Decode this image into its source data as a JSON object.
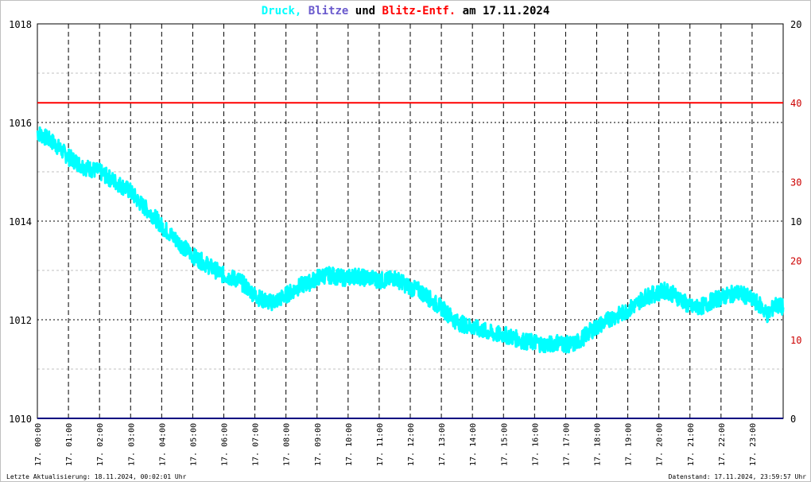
{
  "chart_data": {
    "type": "line",
    "title": {
      "part1": "Druck,",
      "part2": "Blitze",
      "part3": "und",
      "part4": "Blitz-Entf.",
      "part5": "am 17.11.2024"
    },
    "colors": {
      "pressure": "#00ffff",
      "lightning": "#6a5acd",
      "distance": "#ff0000",
      "baseline": "#000080",
      "grid": "#000000",
      "minor_grid": "#c0c0c0",
      "text": "#000000",
      "right_red": "#cc0000"
    },
    "left_axis": {
      "ylim": [
        1010,
        1018
      ],
      "ticks": [
        "1010",
        "1012",
        "1014",
        "1016",
        "1018"
      ]
    },
    "right_axis": {
      "ticks_black": [
        {
          "label": "20",
          "y": 1018
        },
        {
          "label": "10",
          "y": 1014
        },
        {
          "label": "0",
          "y": 1010
        }
      ],
      "ticks_red": [
        {
          "label": "40",
          "y": 1016.4
        },
        {
          "label": "30",
          "y": 1014.8
        },
        {
          "label": "20",
          "y": 1013.2
        },
        {
          "label": "10",
          "y": 1011.6
        }
      ]
    },
    "x_ticks": [
      "17. 00:00",
      "17. 01:00",
      "17. 02:00",
      "17. 03:00",
      "17. 04:00",
      "17. 05:00",
      "17. 06:00",
      "17. 07:00",
      "17. 08:00",
      "17. 09:00",
      "17. 10:00",
      "17. 11:00",
      "17. 12:00",
      "17. 13:00",
      "17. 14:00",
      "17. 15:00",
      "17. 16:00",
      "17. 17:00",
      "17. 18:00",
      "17. 19:00",
      "17. 20:00",
      "17. 21:00",
      "17. 22:00",
      "17. 23:00"
    ],
    "distance_line": {
      "y": 1016.4
    },
    "lightning_count": {
      "y": 1010
    },
    "pressure_series": {
      "name": "Druck",
      "x_hours": [
        0,
        0.25,
        0.5,
        0.75,
        1,
        1.25,
        1.5,
        1.75,
        2,
        2.25,
        2.5,
        2.75,
        3,
        3.25,
        3.5,
        3.75,
        4,
        4.25,
        4.5,
        4.75,
        5,
        5.25,
        5.5,
        5.75,
        6,
        6.25,
        6.5,
        6.75,
        7,
        7.25,
        7.5,
        7.75,
        8,
        8.25,
        8.5,
        8.75,
        9,
        9.25,
        9.5,
        9.75,
        10,
        10.25,
        10.5,
        10.75,
        11,
        11.25,
        11.5,
        11.75,
        12,
        12.25,
        12.5,
        12.75,
        13,
        13.25,
        13.5,
        13.75,
        14,
        14.25,
        14.5,
        14.75,
        15,
        15.25,
        15.5,
        15.75,
        16,
        16.25,
        16.5,
        16.75,
        17,
        17.25,
        17.5,
        17.75,
        18,
        18.25,
        18.5,
        18.75,
        19,
        19.25,
        19.5,
        19.75,
        20,
        20.25,
        20.5,
        20.75,
        21,
        21.25,
        21.5,
        21.75,
        22,
        22.25,
        22.5,
        22.75,
        23,
        23.25,
        23.5,
        23.75,
        24
      ],
      "values": [
        1015.8,
        1015.7,
        1015.6,
        1015.45,
        1015.3,
        1015.2,
        1015.1,
        1015.05,
        1015.0,
        1014.9,
        1014.8,
        1014.7,
        1014.6,
        1014.4,
        1014.25,
        1014.1,
        1013.9,
        1013.75,
        1013.6,
        1013.45,
        1013.3,
        1013.2,
        1013.1,
        1013.0,
        1012.9,
        1012.85,
        1012.8,
        1012.65,
        1012.5,
        1012.4,
        1012.35,
        1012.4,
        1012.5,
        1012.6,
        1012.7,
        1012.75,
        1012.85,
        1012.9,
        1012.9,
        1012.85,
        1012.85,
        1012.9,
        1012.85,
        1012.85,
        1012.8,
        1012.8,
        1012.85,
        1012.75,
        1012.65,
        1012.6,
        1012.5,
        1012.35,
        1012.25,
        1012.1,
        1011.95,
        1011.9,
        1011.85,
        1011.8,
        1011.75,
        1011.7,
        1011.7,
        1011.65,
        1011.6,
        1011.55,
        1011.55,
        1011.5,
        1011.5,
        1011.55,
        1011.5,
        1011.5,
        1011.6,
        1011.75,
        1011.85,
        1011.95,
        1012.05,
        1012.1,
        1012.2,
        1012.3,
        1012.45,
        1012.5,
        1012.55,
        1012.6,
        1012.5,
        1012.4,
        1012.25,
        1012.25,
        1012.3,
        1012.4,
        1012.45,
        1012.5,
        1012.55,
        1012.5,
        1012.4,
        1012.3,
        1012.1,
        1012.3,
        1012.25
      ]
    },
    "footer": {
      "left": "Letzte Aktualisierung: 18.11.2024, 00:02:01 Uhr",
      "right": "Datenstand: 17.11.2024, 23:59:57 Uhr"
    }
  }
}
